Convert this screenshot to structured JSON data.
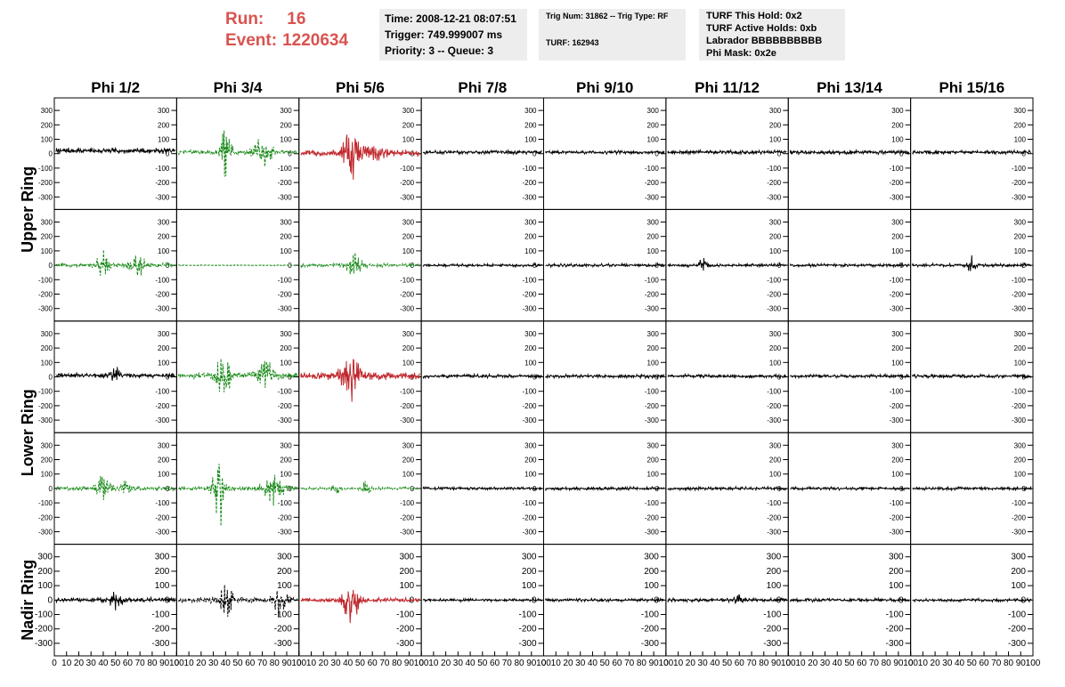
{
  "header": {
    "run_label": "Run:",
    "run_value": "16",
    "event_label": "Event:",
    "event_value": "1220634"
  },
  "info_time": {
    "lines": [
      "Time: 2008-12-21 08:07:51",
      "Trigger: 749.999007 ms",
      "Priority: 3 -- Queue: 3"
    ]
  },
  "info_trig": {
    "line1": "Trig Num: 31862 -- Trig Type: RF",
    "line2": "TURF: 162943"
  },
  "info_turf": {
    "lines": [
      "TURF This Hold: 0x2",
      "TURF Active Holds: 0xb",
      "Labrador BBBBBBBBBB",
      "Phi Mask: 0x2e"
    ]
  },
  "chart_data": {
    "type": "line",
    "column_titles": [
      "Phi 1/2",
      "Phi 3/4",
      "Phi 5/6",
      "Phi 7/8",
      "Phi 9/10",
      "Phi 11/12",
      "Phi 13/14",
      "Phi 15/16"
    ],
    "ring_labels": [
      {
        "text": "Upper Ring",
        "rows": [
          0,
          1
        ]
      },
      {
        "text": "Lower Ring",
        "rows": [
          2,
          3
        ]
      },
      {
        "text": "Nadir Ring",
        "rows": [
          4
        ]
      }
    ],
    "xlim": [
      0,
      100
    ],
    "ylim": [
      -350,
      350
    ],
    "x_ticks": [
      0,
      10,
      20,
      30,
      40,
      50,
      60,
      70,
      80,
      90,
      100
    ],
    "y_ticks": [
      -300,
      -200,
      -100,
      0,
      100,
      200,
      300
    ],
    "colors": {
      "black": "#000000",
      "green": "#1a8a1a",
      "red": "#c0282d"
    },
    "panels": [
      [
        {
          "color": "black",
          "dashed": false,
          "baseline": 20,
          "noise": 22,
          "bursts": []
        },
        {
          "color": "green",
          "dashed": true,
          "baseline": 10,
          "noise": 18,
          "bursts": [
            {
              "x": 40,
              "amp": 230,
              "width": 4
            },
            {
              "x": 70,
              "amp": 110,
              "width": 8
            }
          ]
        },
        {
          "color": "red",
          "dashed": false,
          "baseline": 5,
          "noise": 25,
          "bursts": [
            {
              "x": 42,
              "amp": 230,
              "width": 6
            },
            {
              "x": 60,
              "amp": 60,
              "width": 10
            }
          ]
        },
        {
          "color": "black",
          "dashed": false,
          "baseline": 10,
          "noise": 15,
          "bursts": []
        },
        {
          "color": "black",
          "dashed": false,
          "baseline": 10,
          "noise": 13,
          "bursts": []
        },
        {
          "color": "black",
          "dashed": false,
          "baseline": 10,
          "noise": 15,
          "bursts": []
        },
        {
          "color": "black",
          "dashed": false,
          "baseline": 10,
          "noise": 15,
          "bursts": []
        },
        {
          "color": "black",
          "dashed": false,
          "baseline": 10,
          "noise": 15,
          "bursts": []
        }
      ],
      [
        {
          "color": "green",
          "dashed": true,
          "baseline": 0,
          "noise": 18,
          "bursts": [
            {
              "x": 40,
              "amp": 120,
              "width": 5
            },
            {
              "x": 68,
              "amp": 90,
              "width": 6
            }
          ]
        },
        {
          "color": "green",
          "dashed": true,
          "baseline": 0,
          "noise": 3,
          "bursts": []
        },
        {
          "color": "green",
          "dashed": true,
          "baseline": 0,
          "noise": 14,
          "bursts": [
            {
              "x": 45,
              "amp": 80,
              "width": 6
            }
          ]
        },
        {
          "color": "black",
          "dashed": false,
          "baseline": 0,
          "noise": 12,
          "bursts": []
        },
        {
          "color": "black",
          "dashed": false,
          "baseline": 0,
          "noise": 12,
          "bursts": []
        },
        {
          "color": "black",
          "dashed": false,
          "baseline": 0,
          "noise": 14,
          "bursts": [
            {
              "x": 30,
              "amp": 70,
              "width": 3
            }
          ]
        },
        {
          "color": "black",
          "dashed": false,
          "baseline": 0,
          "noise": 12,
          "bursts": []
        },
        {
          "color": "black",
          "dashed": false,
          "baseline": 0,
          "noise": 13,
          "bursts": [
            {
              "x": 50,
              "amp": 60,
              "width": 3
            }
          ]
        }
      ],
      [
        {
          "color": "black",
          "dashed": false,
          "baseline": 10,
          "noise": 18,
          "bursts": [
            {
              "x": 50,
              "amp": 60,
              "width": 4
            }
          ]
        },
        {
          "color": "green",
          "dashed": true,
          "baseline": 10,
          "noise": 22,
          "bursts": [
            {
              "x": 38,
              "amp": 170,
              "width": 6
            },
            {
              "x": 75,
              "amp": 120,
              "width": 8
            }
          ]
        },
        {
          "color": "red",
          "dashed": false,
          "baseline": 5,
          "noise": 28,
          "bursts": [
            {
              "x": 42,
              "amp": 160,
              "width": 8
            }
          ]
        },
        {
          "color": "black",
          "dashed": false,
          "baseline": 5,
          "noise": 14,
          "bursts": []
        },
        {
          "color": "black",
          "dashed": false,
          "baseline": 5,
          "noise": 14,
          "bursts": []
        },
        {
          "color": "black",
          "dashed": false,
          "baseline": 5,
          "noise": 14,
          "bursts": []
        },
        {
          "color": "black",
          "dashed": false,
          "baseline": 5,
          "noise": 14,
          "bursts": []
        },
        {
          "color": "black",
          "dashed": false,
          "baseline": 5,
          "noise": 14,
          "bursts": []
        }
      ],
      [
        {
          "color": "green",
          "dashed": true,
          "baseline": 0,
          "noise": 18,
          "bursts": [
            {
              "x": 40,
              "amp": 90,
              "width": 6
            },
            {
              "x": 60,
              "amp": 60,
              "width": 5
            }
          ]
        },
        {
          "color": "green",
          "dashed": true,
          "baseline": 0,
          "noise": 22,
          "bursts": [
            {
              "x": 34,
              "amp": 330,
              "width": 4
            },
            {
              "x": 80,
              "amp": 120,
              "width": 8
            }
          ]
        },
        {
          "color": "green",
          "dashed": true,
          "baseline": 0,
          "noise": 10,
          "bursts": [
            {
              "x": 30,
              "amp": 50,
              "width": 4
            },
            {
              "x": 55,
              "amp": 50,
              "width": 4
            }
          ]
        },
        {
          "color": "black",
          "dashed": false,
          "baseline": 0,
          "noise": 12,
          "bursts": []
        },
        {
          "color": "black",
          "dashed": false,
          "baseline": 0,
          "noise": 12,
          "bursts": []
        },
        {
          "color": "black",
          "dashed": false,
          "baseline": 0,
          "noise": 12,
          "bursts": []
        },
        {
          "color": "black",
          "dashed": false,
          "baseline": 0,
          "noise": 12,
          "bursts": []
        },
        {
          "color": "black",
          "dashed": false,
          "baseline": 0,
          "noise": 12,
          "bursts": []
        }
      ],
      [
        {
          "color": "black",
          "dashed": false,
          "baseline": 0,
          "noise": 18,
          "bursts": [
            {
              "x": 50,
              "amp": 60,
              "width": 5
            }
          ]
        },
        {
          "color": "black",
          "dashed": true,
          "baseline": 0,
          "noise": 20,
          "bursts": [
            {
              "x": 40,
              "amp": 170,
              "width": 5
            },
            {
              "x": 85,
              "amp": 100,
              "width": 6
            }
          ]
        },
        {
          "color": "red",
          "dashed": false,
          "baseline": 0,
          "noise": 18,
          "bursts": [
            {
              "x": 42,
              "amp": 170,
              "width": 7
            }
          ]
        },
        {
          "color": "black",
          "dashed": false,
          "baseline": 0,
          "noise": 12,
          "bursts": []
        },
        {
          "color": "black",
          "dashed": false,
          "baseline": 0,
          "noise": 12,
          "bursts": []
        },
        {
          "color": "black",
          "dashed": false,
          "baseline": 0,
          "noise": 14,
          "bursts": [
            {
              "x": 60,
              "amp": 40,
              "width": 4
            }
          ]
        },
        {
          "color": "black",
          "dashed": false,
          "baseline": 0,
          "noise": 13,
          "bursts": []
        },
        {
          "color": "black",
          "dashed": false,
          "baseline": 0,
          "noise": 12,
          "bursts": []
        }
      ]
    ]
  }
}
